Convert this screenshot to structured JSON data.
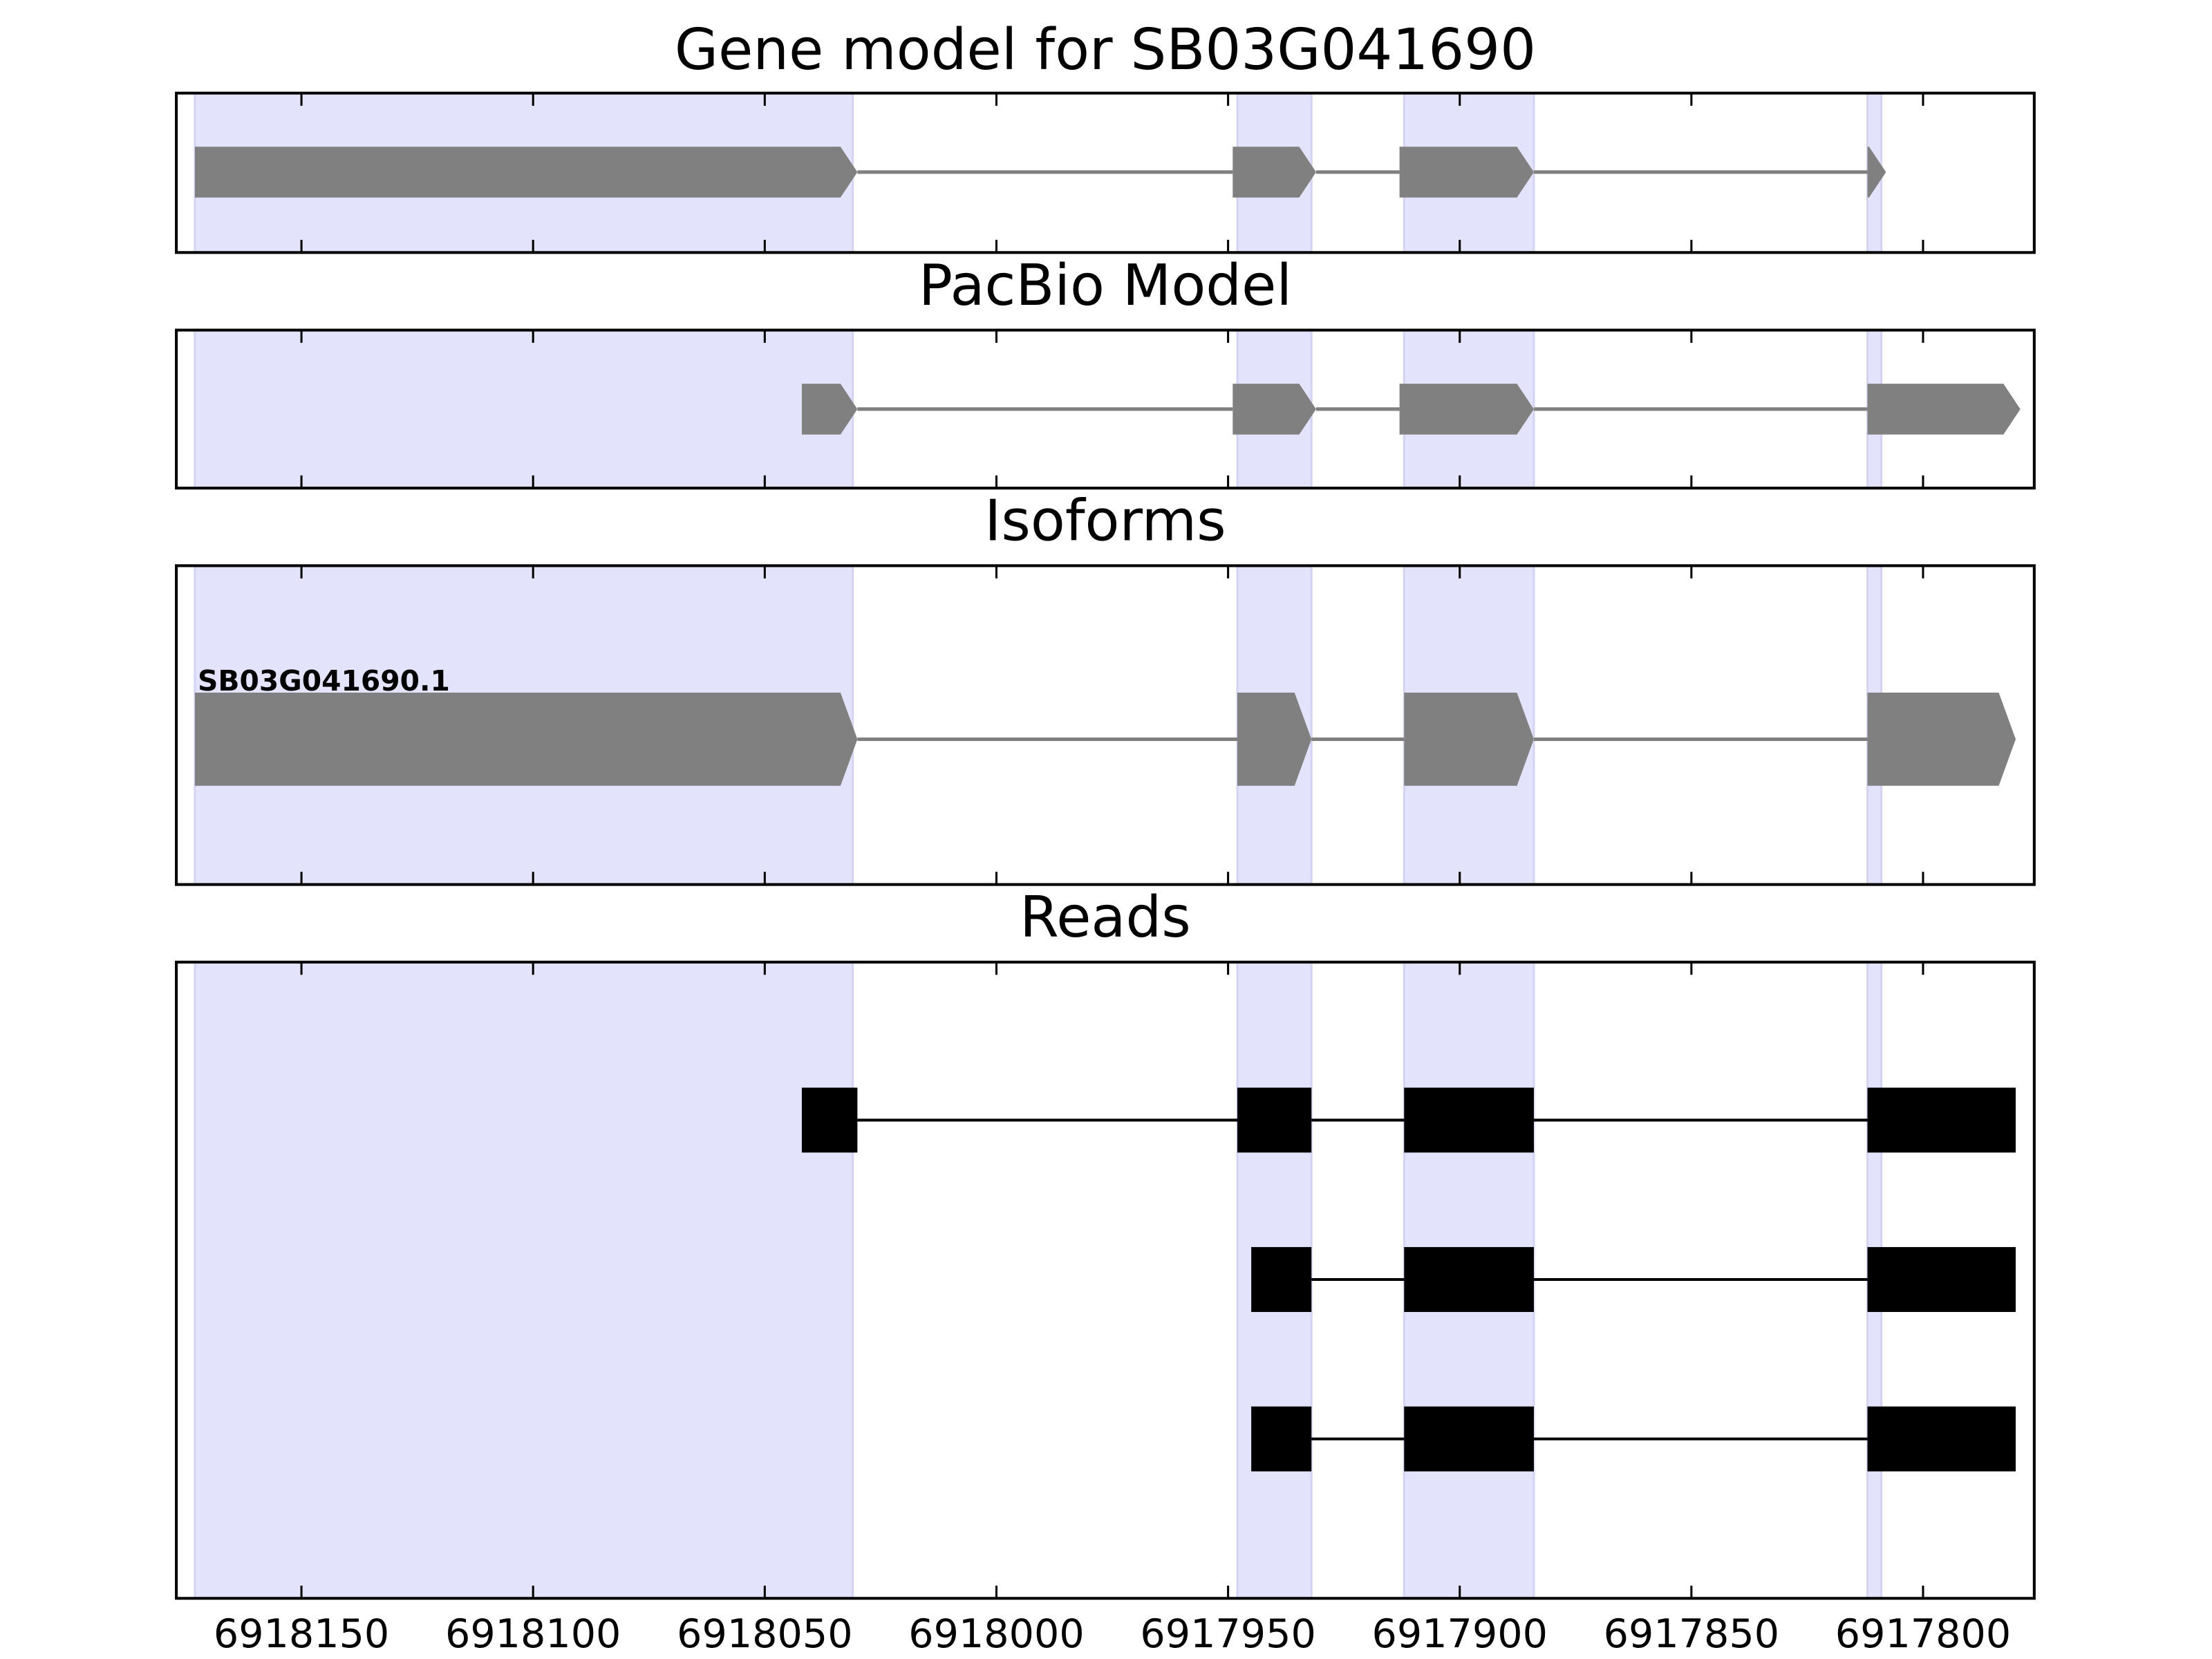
{
  "chart_data": [
    {
      "type": "gene",
      "title": "Gene model for SB03G041690",
      "xlim": [
        6918177,
        6917776
      ],
      "xticks": [
        6918150,
        6918100,
        6918050,
        6918000,
        6917950,
        6917900,
        6917850,
        6917800
      ],
      "xtick_labels": false,
      "highlight_color": "#e3e3fc",
      "highlights": [
        [
          6918173,
          6918031
        ],
        [
          6917948,
          6917932
        ],
        [
          6917912,
          6917884
        ],
        [
          6917812,
          6917809
        ]
      ],
      "color": "#808080",
      "tracks": [
        {
          "exons": [
            [
              6918173,
              6918030
            ],
            [
              6917949,
              6917931
            ],
            [
              6917913,
              6917884
            ],
            [
              6917812,
              6917808
            ]
          ]
        }
      ]
    },
    {
      "type": "gene",
      "title": "PacBio Model",
      "xlim": [
        6918177,
        6917776
      ],
      "xticks": [
        6918150,
        6918100,
        6918050,
        6918000,
        6917950,
        6917900,
        6917850,
        6917800
      ],
      "xtick_labels": false,
      "highlight_color": "#e3e3fc",
      "highlights": [
        [
          6918173,
          6918031
        ],
        [
          6917948,
          6917932
        ],
        [
          6917912,
          6917884
        ],
        [
          6917812,
          6917809
        ]
      ],
      "color": "#808080",
      "tracks": [
        {
          "exons": [
            [
              6918042,
              6918030
            ],
            [
              6917949,
              6917931
            ],
            [
              6917913,
              6917884
            ],
            [
              6917812,
              6917779
            ]
          ]
        }
      ]
    },
    {
      "type": "gene",
      "title": "Isoforms",
      "xlim": [
        6918177,
        6917776
      ],
      "xticks": [
        6918150,
        6918100,
        6918050,
        6918000,
        6917950,
        6917900,
        6917850,
        6917800
      ],
      "xtick_labels": false,
      "highlight_color": "#e3e3fc",
      "highlights": [
        [
          6918173,
          6918031
        ],
        [
          6917948,
          6917932
        ],
        [
          6917912,
          6917884
        ],
        [
          6917812,
          6917809
        ]
      ],
      "color": "#808080",
      "tracks": [
        {
          "name": "SB03G041690.1",
          "exons": [
            [
              6918173,
              6918030
            ],
            [
              6917948,
              6917932
            ],
            [
              6917912,
              6917884
            ],
            [
              6917812,
              6917780
            ]
          ]
        }
      ]
    },
    {
      "type": "reads",
      "title": "Reads",
      "xlim": [
        6918177,
        6917776
      ],
      "xticks": [
        6918150,
        6918100,
        6918050,
        6918000,
        6917950,
        6917900,
        6917850,
        6917800
      ],
      "xtick_labels": true,
      "highlight_color": "#e3e3fc",
      "highlights": [
        [
          6918173,
          6918031
        ],
        [
          6917948,
          6917932
        ],
        [
          6917912,
          6917884
        ],
        [
          6917812,
          6917809
        ]
      ],
      "color": "#000000",
      "tracks": [
        {
          "exons": [
            [
              6918042,
              6918030
            ],
            [
              6917948,
              6917932
            ],
            [
              6917912,
              6917884
            ],
            [
              6917812,
              6917780
            ]
          ]
        },
        {
          "exons": [
            [
              6917945,
              6917932
            ],
            [
              6917912,
              6917884
            ],
            [
              6917812,
              6917780
            ]
          ]
        },
        {
          "exons": [
            [
              6917945,
              6917932
            ],
            [
              6917912,
              6917884
            ],
            [
              6917812,
              6917780
            ]
          ]
        }
      ]
    }
  ]
}
